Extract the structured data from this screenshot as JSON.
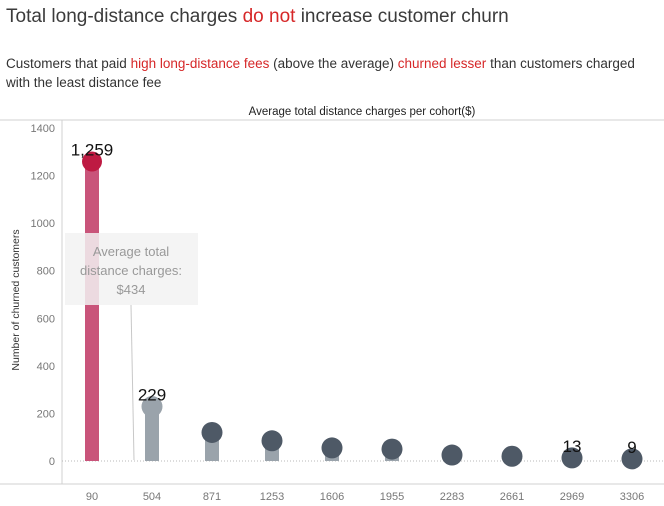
{
  "title": {
    "part1": "Total long-distance charges ",
    "highlight": "do not",
    "part2": " increase customer churn"
  },
  "subtitle": {
    "part1": "Customers that paid ",
    "highlight1": "high long-distance fees",
    "part2": " (above the average) ",
    "highlight2": "churned lesser",
    "part3": " than customers charged with the least distance fee"
  },
  "colors": {
    "highlight_text": "#d62728",
    "bar_highlight": "#c9547a",
    "dot_highlight": "#be1a42",
    "bar_normal": "#9aa3ab",
    "dot_normal": "#4e5966",
    "dot_first_gray": "#9aa3ab"
  },
  "chart_data": {
    "type": "bar",
    "title": "Average total distance charges per cohort($)",
    "xlabel": "",
    "ylabel": "Number of churned customers",
    "ylim": [
      0,
      1400
    ],
    "yticks": [
      0,
      200,
      400,
      600,
      800,
      1000,
      1200,
      1400
    ],
    "categories": [
      "90",
      "504",
      "871",
      "1253",
      "1606",
      "1955",
      "2283",
      "2661",
      "2969",
      "3306"
    ],
    "values": [
      1259,
      229,
      120,
      85,
      55,
      50,
      25,
      20,
      13,
      9
    ],
    "data_labels": [
      "1,259",
      "229",
      "",
      "",
      "",
      "",
      "",
      "",
      "13",
      "9"
    ],
    "highlight_index": 0,
    "grid": false,
    "annotation": {
      "lines": [
        "Average total",
        "distance charges:",
        "$434"
      ]
    }
  }
}
